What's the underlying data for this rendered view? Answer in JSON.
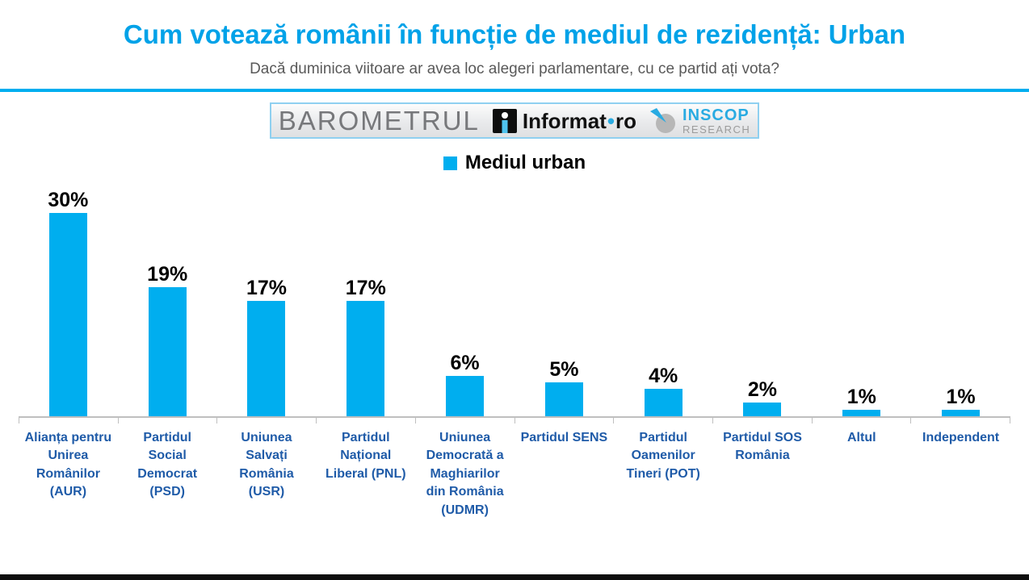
{
  "header": {
    "title": "Cum votează românii în funcție de mediul de rezidență: Urban",
    "subtitle": "Dacă duminica viitoare ar avea loc alegeri parlamentare, cu ce partid ați vota?"
  },
  "logos": {
    "barometrul": "BAROMETRUL",
    "informat": {
      "name": "Informat",
      "dot": "•",
      "tld": "ro"
    },
    "inscop": {
      "name": "INSCOP",
      "subname": "RESEARCH"
    }
  },
  "legend": {
    "label": "Mediul urban",
    "swatch_color": "#00AEEF"
  },
  "chart_data": {
    "type": "bar",
    "title": "Mediul urban",
    "series": [
      {
        "name": "Mediul urban",
        "values": [
          30,
          19,
          17,
          17,
          6,
          5,
          4,
          2,
          1,
          1
        ]
      }
    ],
    "categories": [
      "Alianța pentru Unirea Românilor (AUR)",
      "Partidul Social Democrat (PSD)",
      "Uniunea Salvați România (USR)",
      "Partidul Național Liberal (PNL)",
      "Uniunea Democrată a Maghiarilor din România (UDMR)",
      "Partidul SENS",
      "Partidul Oamenilor Tineri (POT)",
      "Partidul SOS România",
      "Altul",
      "Independent"
    ],
    "value_labels": [
      "30%",
      "19%",
      "17%",
      "17%",
      "6%",
      "5%",
      "4%",
      "2%",
      "1%",
      "1%"
    ],
    "xlabel": "",
    "ylabel": "",
    "ylim": [
      0,
      34
    ],
    "grid": false,
    "legend_position": "top",
    "bar_color": "#00AEEF",
    "value_label_color": "#000000",
    "category_label_color": "#1F5BA8",
    "axis_color": "#BFBFBF"
  },
  "colors": {
    "title": "#00A2E8",
    "subtitle": "#595959",
    "divider": "#00AEEF",
    "bottom_bar": "#0d0d0d"
  }
}
